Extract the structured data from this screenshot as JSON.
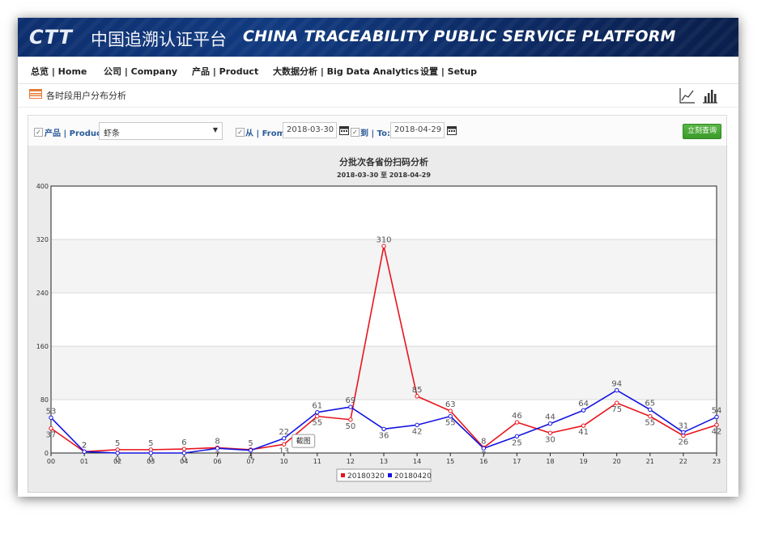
{
  "header": {
    "logo": "CTT",
    "brand_cn": "中国追溯认证平台",
    "brand_en": "CHINA TRACEABILITY PUBLIC SERVICE PLATFORM"
  },
  "nav": {
    "items": [
      {
        "label": "总览 | Home"
      },
      {
        "label": "公司 | Company"
      },
      {
        "label": "产品 | Product"
      },
      {
        "label": "大数据分析 | Big Data Analytics"
      },
      {
        "label": "设置 | Setup"
      }
    ]
  },
  "toolbar": {
    "title": "各时段用户分布分析",
    "line_view_icon": "line-chart-icon",
    "bar_view_icon": "bar-chart-icon"
  },
  "filters": {
    "product_label": "产品 | Product:",
    "product_value": "虾条",
    "from_label": "从 | From:",
    "from_value": "2018-03-30",
    "to_label": "到 | To:",
    "to_value": "2018-04-29",
    "query_label": "立刻查询",
    "check_mark": "✓"
  },
  "tooltip": "截图",
  "chart_data": {
    "type": "line",
    "title": "分批次各省份扫码分析",
    "subtitle": "2018-03-30 至 2018-04-29",
    "xlabel": "",
    "ylabel": "",
    "categories": [
      "00",
      "01",
      "02",
      "03",
      "04",
      "06",
      "07",
      "10",
      "11",
      "12",
      "13",
      "14",
      "15",
      "16",
      "17",
      "18",
      "19",
      "20",
      "21",
      "22",
      "23"
    ],
    "ylim": [
      0,
      400
    ],
    "yticks": [
      0,
      80,
      160,
      240,
      320,
      400
    ],
    "grid": true,
    "legend": "bottom-center",
    "series": [
      {
        "name": "20180320",
        "color": "#e8141c",
        "values": [
          37,
          2,
          5,
          5,
          6,
          8,
          5,
          13,
          55,
          50,
          310,
          85,
          63,
          8,
          46,
          30,
          41,
          75,
          55,
          26,
          42
        ]
      },
      {
        "name": "20180420",
        "color": "#1414e0",
        "values": [
          53,
          2,
          0,
          0,
          0,
          7,
          4,
          22,
          61,
          69,
          36,
          42,
          55,
          7,
          25,
          44,
          64,
          94,
          65,
          31,
          54
        ]
      }
    ]
  }
}
